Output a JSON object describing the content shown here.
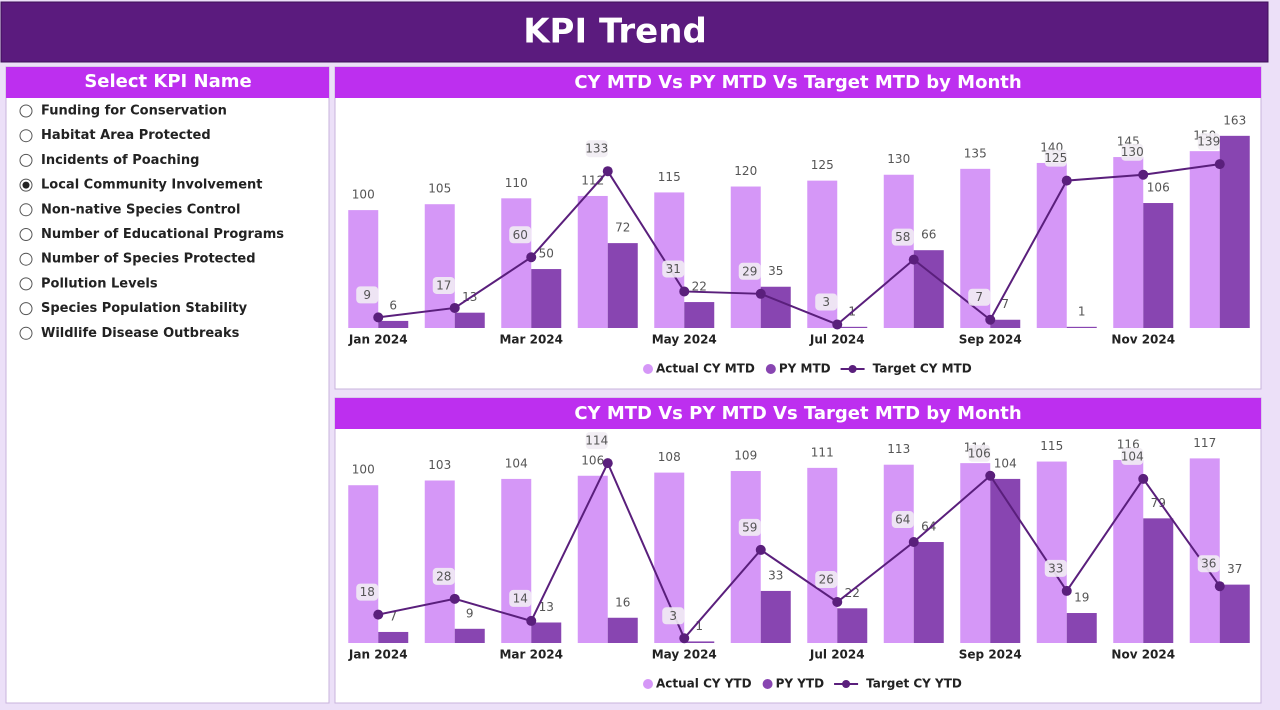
{
  "header": {
    "title": "KPI Trend"
  },
  "slicer": {
    "title": "Select KPI Name",
    "options": [
      "Funding for Conservation",
      "Habitat Area Protected",
      "Incidents of Poaching",
      "Local Community Involvement",
      "Non-native Species Control",
      "Number of Educational Programs",
      "Number of Species Protected",
      "Pollution Levels",
      "Species Population Stability",
      "Wildlife Disease Outbreaks"
    ],
    "selected_index": 3
  },
  "chart_data": [
    {
      "type": "bar_line",
      "title": "CY MTD Vs PY MTD Vs Target MTD by Month",
      "categories": [
        "Jan 2024",
        null,
        "Mar 2024",
        null,
        "May 2024",
        null,
        "Jul 2024",
        null,
        "Sep 2024",
        null,
        "Nov 2024",
        null
      ],
      "ylim": [
        0,
        190
      ],
      "series": [
        {
          "name": "Actual CY MTD",
          "type": "bar",
          "color": "#d597f7",
          "values": [
            100,
            105,
            110,
            112,
            115,
            120,
            125,
            130,
            135,
            140,
            145,
            150
          ]
        },
        {
          "name": "PY MTD",
          "type": "bar",
          "color": "#8845b1",
          "values": [
            6,
            13,
            50,
            72,
            22,
            35,
            1,
            66,
            7,
            1,
            106,
            163
          ]
        },
        {
          "name": "Target CY MTD",
          "type": "line",
          "color": "#5a1f7c",
          "values": [
            9,
            17,
            60,
            133,
            31,
            29,
            3,
            58,
            7,
            125,
            130,
            139
          ]
        }
      ]
    },
    {
      "type": "bar_line",
      "title": "CY MTD Vs PY MTD Vs Target MTD by Month",
      "categories": [
        "Jan 2024",
        null,
        "Mar 2024",
        null,
        "May 2024",
        null,
        "Jul 2024",
        null,
        "Sep 2024",
        null,
        "Nov 2024",
        null
      ],
      "ylim": [
        0,
        135
      ],
      "series": [
        {
          "name": "Actual CY YTD",
          "type": "bar",
          "color": "#d597f7",
          "values": [
            100,
            103,
            104,
            106,
            108,
            109,
            111,
            113,
            114,
            115,
            116,
            117
          ]
        },
        {
          "name": "PY YTD",
          "type": "bar",
          "color": "#8845b1",
          "values": [
            7,
            9,
            13,
            16,
            1,
            33,
            22,
            64,
            104,
            19,
            79,
            37
          ]
        },
        {
          "name": "Target CY YTD",
          "type": "line",
          "color": "#5a1f7c",
          "values": [
            18,
            28,
            14,
            114,
            3,
            59,
            26,
            64,
            106,
            33,
            104,
            36
          ]
        }
      ]
    }
  ]
}
